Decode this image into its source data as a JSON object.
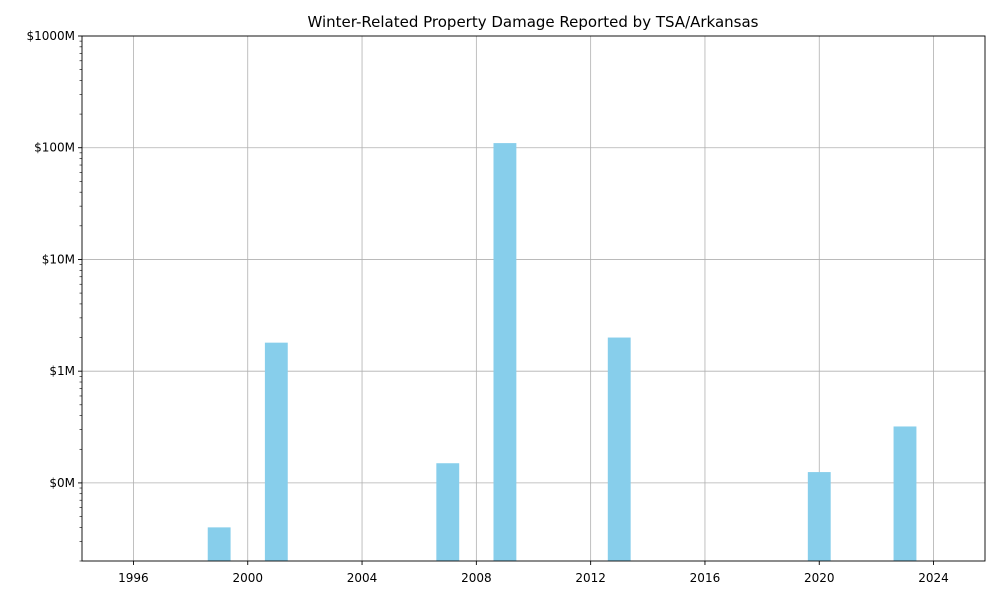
{
  "chart_data": {
    "type": "bar",
    "title": "Winter-Related Property Damage Reported by TSA/Arkansas",
    "xlabel": "",
    "ylabel": "",
    "y_scale": "log",
    "ylim": [
      20000,
      1000000000
    ],
    "xlim": [
      1994.2,
      2025.8
    ],
    "grid": true,
    "bar_color": "#87ceeb",
    "x_ticks": [
      1996,
      2000,
      2004,
      2008,
      2012,
      2016,
      2020,
      2024
    ],
    "x_tick_labels": [
      "1996",
      "2000",
      "2004",
      "2008",
      "2012",
      "2016",
      "2020",
      "2024"
    ],
    "y_ticks": [
      100000,
      1000000,
      10000000,
      100000000,
      1000000000
    ],
    "y_tick_labels": [
      "$0M",
      "$1M",
      "$10M",
      "$100M",
      "$1000M"
    ],
    "x": [
      1999,
      2001,
      2007,
      2009,
      2013,
      2020,
      2023
    ],
    "values": [
      40000,
      1800000,
      150000,
      110000000,
      2000000,
      125000,
      320000
    ]
  }
}
